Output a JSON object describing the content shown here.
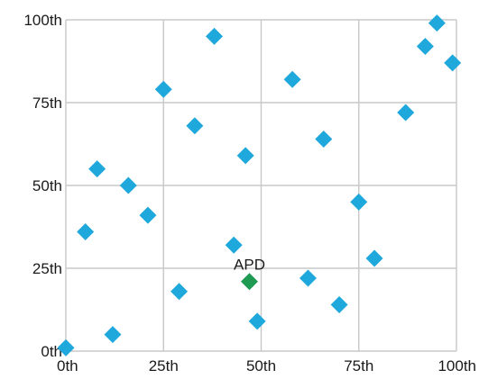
{
  "chart_data": {
    "type": "scatter",
    "x_ticks": [
      "0th",
      "25th",
      "50th",
      "75th",
      "100th"
    ],
    "y_ticks": [
      "0th",
      "25th",
      "50th",
      "75th",
      "100th"
    ],
    "xlim": [
      0,
      100
    ],
    "ylim": [
      0,
      100
    ],
    "grid": true,
    "series": [
      {
        "color": "#1fa8dc",
        "marker": "diamond",
        "points": [
          {
            "x": 0,
            "y": 1
          },
          {
            "x": 5,
            "y": 36
          },
          {
            "x": 8,
            "y": 55
          },
          {
            "x": 12,
            "y": 5
          },
          {
            "x": 16,
            "y": 50
          },
          {
            "x": 21,
            "y": 41
          },
          {
            "x": 25,
            "y": 79
          },
          {
            "x": 29,
            "y": 18
          },
          {
            "x": 33,
            "y": 68
          },
          {
            "x": 38,
            "y": 95
          },
          {
            "x": 43,
            "y": 32
          },
          {
            "x": 46,
            "y": 59
          },
          {
            "x": 49,
            "y": 9
          },
          {
            "x": 58,
            "y": 82
          },
          {
            "x": 62,
            "y": 22
          },
          {
            "x": 66,
            "y": 64
          },
          {
            "x": 70,
            "y": 14
          },
          {
            "x": 75,
            "y": 45
          },
          {
            "x": 79,
            "y": 28
          },
          {
            "x": 87,
            "y": 72
          },
          {
            "x": 92,
            "y": 92
          },
          {
            "x": 95,
            "y": 99
          },
          {
            "x": 99,
            "y": 87
          }
        ]
      },
      {
        "color": "#1f9a52",
        "marker": "diamond",
        "points": [
          {
            "x": 47,
            "y": 21,
            "label": "APD"
          }
        ]
      }
    ]
  }
}
